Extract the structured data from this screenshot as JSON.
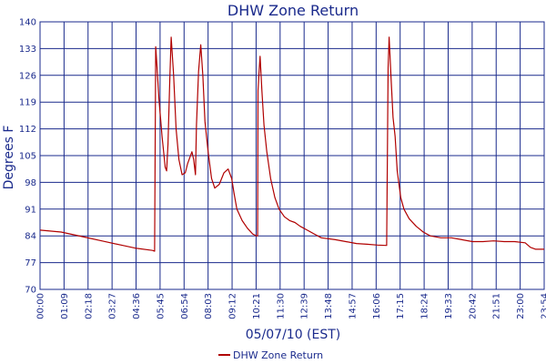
{
  "chart_data": {
    "type": "line",
    "title": "DHW Zone Return",
    "xlabel": "05/07/10 (EST)",
    "ylabel": "Degrees F",
    "ylim": [
      70,
      140
    ],
    "xlim": [
      "00:00",
      "23:54"
    ],
    "grid": true,
    "legend_position": "bottom",
    "y_ticks": [
      "70",
      "77",
      "84",
      "91",
      "98",
      "105",
      "112",
      "119",
      "126",
      "133",
      "140"
    ],
    "x_ticks": [
      "00:00",
      "01:09",
      "02:18",
      "03:27",
      "04:36",
      "05:45",
      "06:54",
      "08:03",
      "09:12",
      "10:21",
      "11:30",
      "12:39",
      "13:48",
      "14:57",
      "16:06",
      "17:15",
      "18:24",
      "19:33",
      "20:42",
      "21:51",
      "23:00",
      "23:54"
    ],
    "series": [
      {
        "name": "DHW Zone Return",
        "color": "#b00000",
        "points": [
          [
            "00:00",
            85.5
          ],
          [
            "01:00",
            85.0
          ],
          [
            "02:00",
            83.8
          ],
          [
            "03:00",
            82.6
          ],
          [
            "04:00",
            81.4
          ],
          [
            "04:30",
            80.8
          ],
          [
            "05:20",
            80.2
          ],
          [
            "05:26",
            80.0
          ],
          [
            "05:29",
            133.5
          ],
          [
            "05:33",
            128
          ],
          [
            "05:38",
            120
          ],
          [
            "05:47",
            110
          ],
          [
            "05:56",
            102
          ],
          [
            "06:00",
            101
          ],
          [
            "06:04",
            108
          ],
          [
            "06:09",
            125
          ],
          [
            "06:13",
            136
          ],
          [
            "06:20",
            126
          ],
          [
            "06:27",
            112
          ],
          [
            "06:35",
            104
          ],
          [
            "06:44",
            100
          ],
          [
            "06:53",
            100.5
          ],
          [
            "07:00",
            103
          ],
          [
            "07:12",
            106
          ],
          [
            "07:17",
            104
          ],
          [
            "07:22",
            100
          ],
          [
            "07:25",
            113
          ],
          [
            "07:31",
            127
          ],
          [
            "07:37",
            134
          ],
          [
            "07:43",
            126
          ],
          [
            "07:49",
            114
          ],
          [
            "07:58",
            106
          ],
          [
            "08:08",
            99
          ],
          [
            "08:17",
            96.5
          ],
          [
            "08:30",
            97.5
          ],
          [
            "08:43",
            100.5
          ],
          [
            "08:55",
            101.5
          ],
          [
            "09:05",
            99
          ],
          [
            "09:12",
            95
          ],
          [
            "09:20",
            91
          ],
          [
            "09:35",
            88
          ],
          [
            "09:50",
            86
          ],
          [
            "10:05",
            84.5
          ],
          [
            "10:15",
            84
          ],
          [
            "10:19",
            84
          ],
          [
            "10:20",
            122
          ],
          [
            "10:26",
            131
          ],
          [
            "10:31",
            122
          ],
          [
            "10:37",
            113
          ],
          [
            "10:45",
            106
          ],
          [
            "10:56",
            99
          ],
          [
            "11:08",
            94
          ],
          [
            "11:20",
            91
          ],
          [
            "11:35",
            89
          ],
          [
            "11:50",
            88
          ],
          [
            "12:05",
            87.5
          ],
          [
            "12:20",
            86.5
          ],
          [
            "12:40",
            85.5
          ],
          [
            "13:00",
            84.5
          ],
          [
            "13:20",
            83.5
          ],
          [
            "14:00",
            83
          ],
          [
            "14:30",
            82.5
          ],
          [
            "15:00",
            82
          ],
          [
            "15:30",
            81.8
          ],
          [
            "16:00",
            81.6
          ],
          [
            "16:24",
            81.5
          ],
          [
            "16:26",
            81.5
          ],
          [
            "16:30",
            128
          ],
          [
            "16:33",
            136
          ],
          [
            "16:38",
            126
          ],
          [
            "16:44",
            115
          ],
          [
            "16:50",
            110
          ],
          [
            "16:56",
            101
          ],
          [
            "17:06",
            94
          ],
          [
            "17:15",
            91
          ],
          [
            "17:30",
            88.5
          ],
          [
            "17:50",
            86.5
          ],
          [
            "18:10",
            85
          ],
          [
            "18:30",
            84
          ],
          [
            "19:00",
            83.5
          ],
          [
            "19:30",
            83.5
          ],
          [
            "20:00",
            83
          ],
          [
            "20:30",
            82.5
          ],
          [
            "21:00",
            82.5
          ],
          [
            "21:30",
            82.7
          ],
          [
            "22:00",
            82.5
          ],
          [
            "22:30",
            82.5
          ],
          [
            "23:00",
            82.2
          ],
          [
            "23:15",
            81
          ],
          [
            "23:30",
            80.5
          ],
          [
            "23:54",
            80.5
          ]
        ]
      }
    ]
  }
}
